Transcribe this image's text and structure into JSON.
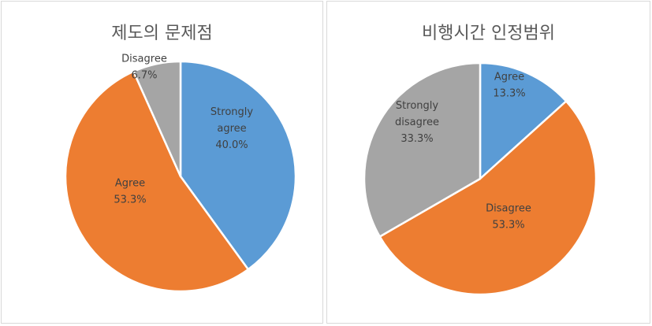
{
  "chart_data": [
    {
      "type": "pie",
      "title": "제도의 문제점",
      "slices": [
        {
          "label": [
            "Strongly",
            "agree"
          ],
          "pct_label": "40.0%",
          "value": 40.0,
          "color": "#5b9bd5"
        },
        {
          "label": [
            "Agree"
          ],
          "pct_label": "53.3%",
          "value": 53.3,
          "color": "#ed7d31"
        },
        {
          "label": [
            "Disagree"
          ],
          "pct_label": "6.7%",
          "value": 6.7,
          "color": "#a5a5a5"
        }
      ]
    },
    {
      "type": "pie",
      "title": "비행시간 인정범위",
      "slices": [
        {
          "label": [
            "Agree"
          ],
          "pct_label": "13.3%",
          "value": 13.3,
          "color": "#5b9bd5"
        },
        {
          "label": [
            "Disagree"
          ],
          "pct_label": "53.3%",
          "value": 53.3,
          "color": "#ed7d31"
        },
        {
          "label": [
            "Strongly",
            "disagree"
          ],
          "pct_label": "33.3%",
          "value": 33.3,
          "color": "#a5a5a5"
        }
      ]
    }
  ]
}
